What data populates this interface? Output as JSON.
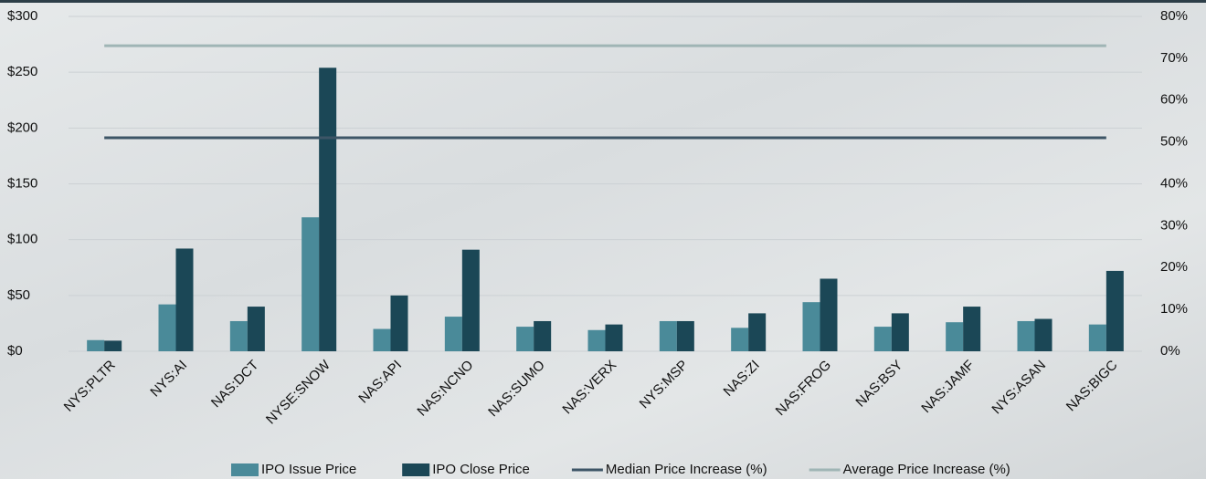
{
  "chart_data": {
    "type": "bar",
    "categories": [
      "NYS:PLTR",
      "NYS:AI",
      "NAS:DCT",
      "NYSE:SNOW",
      "NAS:API",
      "NAS:NCNO",
      "NAS:SUMO",
      "NAS:VERX",
      "NYS:MSP",
      "NAS:ZI",
      "NAS:FROG",
      "NAS:BSY",
      "NAS:JAMF",
      "NYS:ASAN",
      "NAS:BIGC"
    ],
    "series": [
      {
        "name": "IPO Issue Price",
        "color": "#4a8a99",
        "type": "bar",
        "values": [
          10,
          42,
          27,
          120,
          20,
          31,
          22,
          19,
          27,
          21,
          44,
          22,
          26,
          27,
          24
        ]
      },
      {
        "name": "IPO Close Price",
        "color": "#1b4756",
        "type": "bar",
        "values": [
          9.5,
          92,
          40,
          254,
          50,
          91,
          27,
          24,
          27,
          34,
          65,
          34,
          40,
          29,
          72
        ]
      },
      {
        "name": "Median Price Increase (%)",
        "color": "#3d5566",
        "type": "line",
        "axis": "y2",
        "values": [
          51,
          51,
          51,
          51,
          51,
          51,
          51,
          51,
          51,
          51,
          51,
          51,
          51,
          51,
          51
        ]
      },
      {
        "name": "Average Price Increase (%)",
        "color": "#9fb5b5",
        "type": "line",
        "axis": "y2",
        "values": [
          73,
          73,
          73,
          73,
          73,
          73,
          73,
          73,
          73,
          73,
          73,
          73,
          73,
          73,
          73
        ]
      }
    ],
    "ylim": [
      0,
      300
    ],
    "yticks": [
      {
        "value": 0,
        "label": "$0"
      },
      {
        "value": 50,
        "label": "$50"
      },
      {
        "value": 100,
        "label": "$100"
      },
      {
        "value": 150,
        "label": "$150"
      },
      {
        "value": 200,
        "label": "$200"
      },
      {
        "value": 250,
        "label": "$250"
      },
      {
        "value": 300,
        "label": "$300"
      }
    ],
    "y2lim": [
      0,
      80
    ],
    "y2ticks": [
      {
        "value": 0,
        "label": "0%"
      },
      {
        "value": 10,
        "label": "10%"
      },
      {
        "value": 20,
        "label": "20%"
      },
      {
        "value": 30,
        "label": "30%"
      },
      {
        "value": 40,
        "label": "40%"
      },
      {
        "value": 50,
        "label": "50%"
      },
      {
        "value": 60,
        "label": "60%"
      },
      {
        "value": 70,
        "label": "70%"
      },
      {
        "value": 80,
        "label": "80%"
      }
    ],
    "grid": true
  }
}
